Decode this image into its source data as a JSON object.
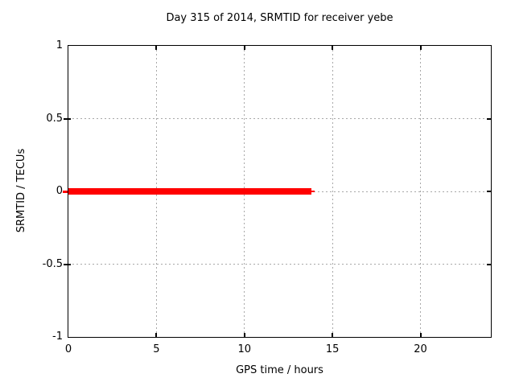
{
  "chart_data": {
    "type": "line",
    "title": "Day 315 of 2014, SRMTID for receiver yebe",
    "xlabel": "GPS time / hours",
    "ylabel": "SRMTID / TECUs",
    "xlim": [
      0,
      24
    ],
    "ylim": [
      -1,
      1
    ],
    "x_ticks": [
      0,
      5,
      10,
      15,
      20
    ],
    "y_ticks": [
      -1,
      -0.5,
      0,
      0.5,
      1
    ],
    "grid": true,
    "legend": "none",
    "colors": {
      "line": "#ff0000",
      "grid": "#a8a8a8",
      "border": "#000000",
      "text": "#000000",
      "background": "#ffffff"
    },
    "series": [
      {
        "name": "SRMTID",
        "color": "#ff0000",
        "y": 0,
        "x_start": 0,
        "x_end": 13.8,
        "x_end_thin": 14.0
      }
    ]
  }
}
